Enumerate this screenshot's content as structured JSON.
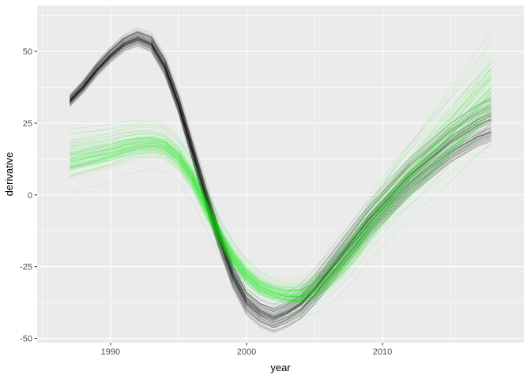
{
  "chart_data": {
    "type": "line",
    "title": "",
    "xlabel": "year",
    "ylabel": "derivative",
    "xlim": [
      1984.6,
      2020.4
    ],
    "ylim": [
      -51.5,
      66
    ],
    "x_ticks": [
      1990,
      2000,
      2010
    ],
    "x_tick_labels": [
      "1990",
      "2000",
      "2010"
    ],
    "y_ticks": [
      -50,
      -25,
      0,
      25,
      50
    ],
    "y_tick_labels": [
      "-50",
      "-25",
      "0",
      "25",
      "50"
    ],
    "grid": true,
    "legend": "none",
    "background_color": "#ebebeb",
    "series": [
      {
        "color": "#000000",
        "line_count": 70,
        "x": [
          1987,
          1988,
          1989,
          1990,
          1991,
          1992,
          1993,
          1994,
          1995,
          1996,
          1997,
          1998,
          1999,
          2000,
          2001,
          2002,
          2003,
          2004,
          2005,
          2006,
          2007,
          2008,
          2009,
          2010,
          2011,
          2012,
          2013,
          2014,
          2015,
          2016,
          2017,
          2018
        ],
        "values": [
          33,
          38,
          44,
          49,
          53,
          55,
          53,
          45,
          32,
          16,
          0,
          -15,
          -28,
          -37,
          -41,
          -43,
          -41,
          -38,
          -33,
          -27,
          -21,
          -15,
          -9,
          -4,
          1,
          6,
          10,
          14,
          18,
          21,
          24,
          26
        ],
        "spread_start": 1.5,
        "spread_mid": 4,
        "spread_end": 6
      },
      {
        "color": "#00ee00",
        "line_count": 70,
        "x": [
          1987,
          1988,
          1989,
          1990,
          1991,
          1992,
          1993,
          1994,
          1995,
          1996,
          1997,
          1998,
          1999,
          2000,
          2001,
          2002,
          2003,
          2004,
          2005,
          2006,
          2007,
          2008,
          2009,
          2010,
          2011,
          2012,
          2013,
          2014,
          2015,
          2016,
          2017,
          2018
        ],
        "values": [
          12,
          13,
          14,
          15,
          16.5,
          17.5,
          18,
          17,
          13,
          6,
          -4,
          -14,
          -22,
          -28,
          -32,
          -34,
          -35,
          -35,
          -33,
          -29,
          -24,
          -18,
          -11,
          -5,
          1,
          6,
          11,
          16,
          21,
          26,
          31,
          36
        ],
        "spread_start": 5,
        "spread_mid": 3,
        "spread_end": 12
      }
    ]
  }
}
